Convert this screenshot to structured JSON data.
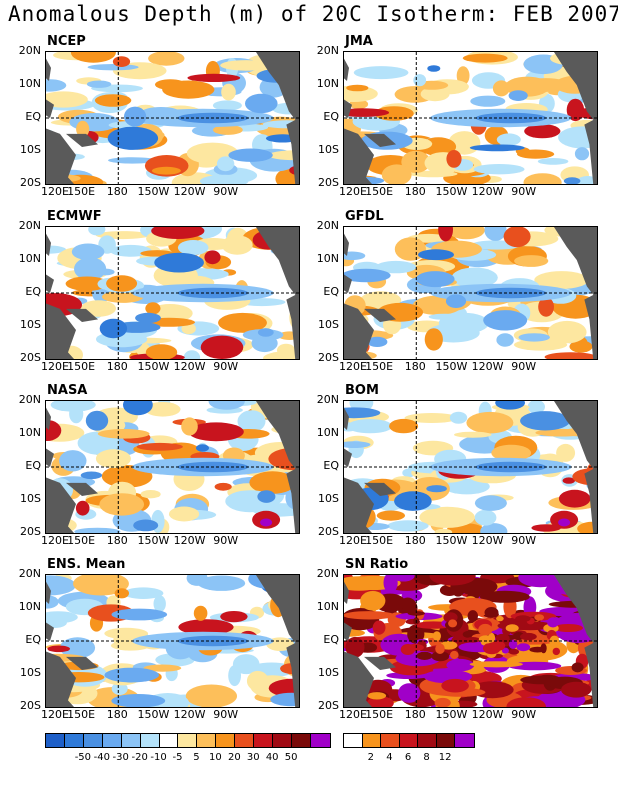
{
  "title": "Anomalous Depth (m) of 20C Isotherm: FEB 2007",
  "panels": [
    {
      "name": "NCEP",
      "label": "NCEP"
    },
    {
      "name": "JMA",
      "label": "JMA"
    },
    {
      "name": "ECMWF",
      "label": "ECMWF"
    },
    {
      "name": "GFDL",
      "label": "GFDL"
    },
    {
      "name": "NASA",
      "label": "NASA"
    },
    {
      "name": "BOM",
      "label": "BOM"
    },
    {
      "name": "ENS",
      "label": "ENS. Mean"
    },
    {
      "name": "SN",
      "label": "SN Ratio"
    }
  ],
  "axes": {
    "y_ticks": [
      "20N",
      "10N",
      "EQ",
      "10S",
      "20S"
    ],
    "x_ticks": [
      "120E",
      "150E",
      "180",
      "150W",
      "120W",
      "90W"
    ]
  },
  "colorbar_anomaly": {
    "labels": [
      "-50",
      "-40",
      "-30",
      "-20",
      "-10",
      "-5",
      "5",
      "10",
      "20",
      "30",
      "40",
      "50"
    ],
    "colors": [
      "#1e5fc8",
      "#2f7ad9",
      "#4a90e2",
      "#6aaaf0",
      "#8cc4f6",
      "#b4e2fa",
      "#ffffff",
      "#fde7a0",
      "#fdbf5a",
      "#f7941d",
      "#e8501e",
      "#c8141e",
      "#a00a14",
      "#7a0a0a",
      "#a000c8"
    ]
  },
  "colorbar_sn": {
    "labels": [
      "2",
      "4",
      "6",
      "8",
      "12"
    ],
    "colors": [
      "#ffffff",
      "#f7941d",
      "#e8501e",
      "#c8141e",
      "#a00a14",
      "#7a0a0a",
      "#a000c8"
    ]
  }
}
